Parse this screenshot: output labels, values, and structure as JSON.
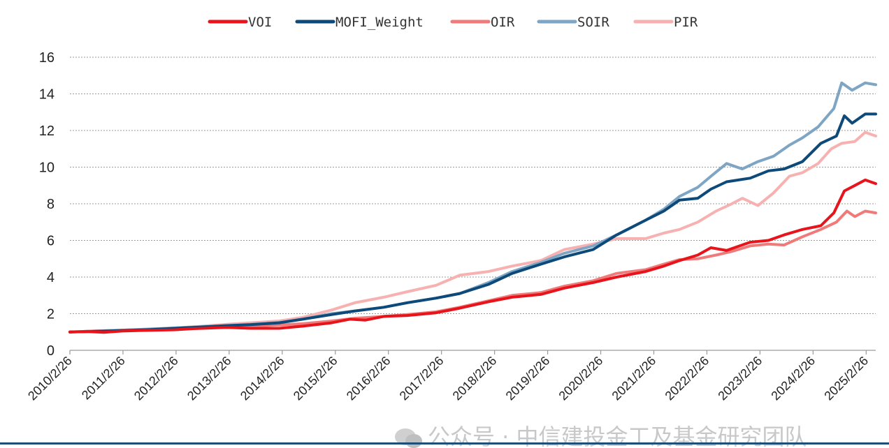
{
  "watermark": {
    "text": "公众号 · 中信建投金工及基金研究团队",
    "icon": "wechat-icon"
  },
  "chart_data": {
    "type": "line",
    "title": "",
    "xlabel": "",
    "ylabel": "",
    "ylim": [
      0,
      16
    ],
    "yticks": [
      "0",
      "2",
      "4",
      "6",
      "8",
      "10",
      "12",
      "14",
      "16"
    ],
    "xlim": [
      2010.15,
      2025.55
    ],
    "xticks": [
      "2010/2/26",
      "2011/2/26",
      "2012/2/26",
      "2013/2/26",
      "2014/2/26",
      "2015/2/26",
      "2016/2/26",
      "2017/2/26",
      "2018/2/26",
      "2019/2/26",
      "2020/2/26",
      "2021/2/26",
      "2022/2/26",
      "2023/2/26",
      "2024/2/26",
      "2025/2/26"
    ],
    "grid": true,
    "legend_position": "top-center",
    "series": [
      {
        "name": "VOI",
        "color": "#e8141c",
        "points": [
          [
            2010.15,
            1.0
          ],
          [
            2010.5,
            1.02
          ],
          [
            2010.8,
            0.98
          ],
          [
            2011.15,
            1.05
          ],
          [
            2011.5,
            1.08
          ],
          [
            2012.15,
            1.12
          ],
          [
            2012.5,
            1.18
          ],
          [
            2013.15,
            1.25
          ],
          [
            2013.6,
            1.2
          ],
          [
            2014.15,
            1.2
          ],
          [
            2014.6,
            1.32
          ],
          [
            2015.15,
            1.5
          ],
          [
            2015.5,
            1.7
          ],
          [
            2015.8,
            1.65
          ],
          [
            2016.15,
            1.85
          ],
          [
            2016.6,
            1.9
          ],
          [
            2017.15,
            2.05
          ],
          [
            2017.6,
            2.3
          ],
          [
            2018.15,
            2.65
          ],
          [
            2018.6,
            2.9
          ],
          [
            2019.15,
            3.05
          ],
          [
            2019.6,
            3.4
          ],
          [
            2020.15,
            3.7
          ],
          [
            2020.6,
            4.0
          ],
          [
            2021.15,
            4.3
          ],
          [
            2021.5,
            4.6
          ],
          [
            2021.8,
            4.9
          ],
          [
            2022.15,
            5.2
          ],
          [
            2022.4,
            5.6
          ],
          [
            2022.7,
            5.45
          ],
          [
            2023.15,
            5.9
          ],
          [
            2023.5,
            6.0
          ],
          [
            2023.8,
            6.3
          ],
          [
            2024.15,
            6.6
          ],
          [
            2024.5,
            6.8
          ],
          [
            2024.75,
            7.5
          ],
          [
            2024.95,
            8.7
          ],
          [
            2025.15,
            9.0
          ],
          [
            2025.35,
            9.3
          ],
          [
            2025.55,
            9.1
          ]
        ]
      },
      {
        "name": "MOFI_Weight",
        "color": "#0d4a7a",
        "points": [
          [
            2010.15,
            1.0
          ],
          [
            2010.6,
            1.03
          ],
          [
            2011.15,
            1.08
          ],
          [
            2011.6,
            1.12
          ],
          [
            2012.15,
            1.2
          ],
          [
            2012.6,
            1.26
          ],
          [
            2013.15,
            1.35
          ],
          [
            2013.6,
            1.4
          ],
          [
            2014.15,
            1.5
          ],
          [
            2014.6,
            1.7
          ],
          [
            2015.15,
            1.95
          ],
          [
            2015.6,
            2.15
          ],
          [
            2016.15,
            2.35
          ],
          [
            2016.6,
            2.6
          ],
          [
            2017.15,
            2.85
          ],
          [
            2017.6,
            3.1
          ],
          [
            2018.15,
            3.6
          ],
          [
            2018.6,
            4.2
          ],
          [
            2019.15,
            4.7
          ],
          [
            2019.6,
            5.1
          ],
          [
            2020.15,
            5.5
          ],
          [
            2020.6,
            6.3
          ],
          [
            2021.15,
            7.1
          ],
          [
            2021.5,
            7.6
          ],
          [
            2021.8,
            8.2
          ],
          [
            2022.15,
            8.3
          ],
          [
            2022.4,
            8.8
          ],
          [
            2022.7,
            9.2
          ],
          [
            2023.15,
            9.4
          ],
          [
            2023.5,
            9.8
          ],
          [
            2023.8,
            9.9
          ],
          [
            2024.15,
            10.3
          ],
          [
            2024.5,
            11.3
          ],
          [
            2024.8,
            11.7
          ],
          [
            2024.95,
            12.8
          ],
          [
            2025.1,
            12.4
          ],
          [
            2025.35,
            12.9
          ],
          [
            2025.55,
            12.9
          ]
        ]
      },
      {
        "name": "OIR",
        "color": "#f07a7a",
        "points": [
          [
            2010.15,
            1.0
          ],
          [
            2010.6,
            1.05
          ],
          [
            2011.15,
            1.08
          ],
          [
            2011.6,
            1.12
          ],
          [
            2012.15,
            1.15
          ],
          [
            2012.6,
            1.2
          ],
          [
            2013.15,
            1.28
          ],
          [
            2013.6,
            1.32
          ],
          [
            2014.15,
            1.38
          ],
          [
            2014.6,
            1.45
          ],
          [
            2015.15,
            1.6
          ],
          [
            2015.6,
            1.75
          ],
          [
            2016.15,
            1.85
          ],
          [
            2016.6,
            1.95
          ],
          [
            2017.15,
            2.1
          ],
          [
            2017.6,
            2.35
          ],
          [
            2018.15,
            2.7
          ],
          [
            2018.6,
            3.0
          ],
          [
            2019.15,
            3.15
          ],
          [
            2019.6,
            3.5
          ],
          [
            2020.15,
            3.8
          ],
          [
            2020.6,
            4.2
          ],
          [
            2021.15,
            4.4
          ],
          [
            2021.5,
            4.7
          ],
          [
            2021.8,
            4.95
          ],
          [
            2022.15,
            5.0
          ],
          [
            2022.5,
            5.2
          ],
          [
            2022.8,
            5.4
          ],
          [
            2023.15,
            5.7
          ],
          [
            2023.5,
            5.8
          ],
          [
            2023.8,
            5.75
          ],
          [
            2024.15,
            6.2
          ],
          [
            2024.5,
            6.6
          ],
          [
            2024.8,
            7.0
          ],
          [
            2025.0,
            7.6
          ],
          [
            2025.15,
            7.3
          ],
          [
            2025.35,
            7.6
          ],
          [
            2025.55,
            7.5
          ]
        ]
      },
      {
        "name": "SOIR",
        "color": "#7fa5c4",
        "points": [
          [
            2010.15,
            1.0
          ],
          [
            2010.6,
            1.05
          ],
          [
            2011.15,
            1.1
          ],
          [
            2011.6,
            1.15
          ],
          [
            2012.15,
            1.22
          ],
          [
            2012.6,
            1.28
          ],
          [
            2013.15,
            1.35
          ],
          [
            2013.6,
            1.42
          ],
          [
            2014.15,
            1.52
          ],
          [
            2014.6,
            1.7
          ],
          [
            2015.15,
            2.0
          ],
          [
            2015.6,
            2.15
          ],
          [
            2016.15,
            2.35
          ],
          [
            2016.6,
            2.6
          ],
          [
            2017.15,
            2.85
          ],
          [
            2017.6,
            3.1
          ],
          [
            2018.15,
            3.7
          ],
          [
            2018.6,
            4.3
          ],
          [
            2019.15,
            4.8
          ],
          [
            2019.6,
            5.3
          ],
          [
            2020.15,
            5.7
          ],
          [
            2020.6,
            6.3
          ],
          [
            2021.15,
            7.1
          ],
          [
            2021.5,
            7.7
          ],
          [
            2021.8,
            8.4
          ],
          [
            2022.15,
            8.9
          ],
          [
            2022.4,
            9.5
          ],
          [
            2022.7,
            10.2
          ],
          [
            2023.0,
            9.9
          ],
          [
            2023.3,
            10.3
          ],
          [
            2023.6,
            10.6
          ],
          [
            2023.9,
            11.2
          ],
          [
            2024.15,
            11.6
          ],
          [
            2024.45,
            12.2
          ],
          [
            2024.75,
            13.2
          ],
          [
            2024.9,
            14.6
          ],
          [
            2025.1,
            14.2
          ],
          [
            2025.35,
            14.6
          ],
          [
            2025.55,
            14.5
          ]
        ]
      },
      {
        "name": "PIR",
        "color": "#f7b1b1",
        "points": [
          [
            2010.15,
            1.0
          ],
          [
            2010.6,
            1.05
          ],
          [
            2011.15,
            1.1
          ],
          [
            2011.6,
            1.15
          ],
          [
            2012.15,
            1.22
          ],
          [
            2012.6,
            1.3
          ],
          [
            2013.15,
            1.42
          ],
          [
            2013.6,
            1.5
          ],
          [
            2014.15,
            1.6
          ],
          [
            2014.6,
            1.8
          ],
          [
            2015.15,
            2.2
          ],
          [
            2015.6,
            2.6
          ],
          [
            2016.15,
            2.9
          ],
          [
            2016.6,
            3.2
          ],
          [
            2017.15,
            3.55
          ],
          [
            2017.6,
            4.1
          ],
          [
            2018.15,
            4.3
          ],
          [
            2018.6,
            4.6
          ],
          [
            2019.15,
            4.9
          ],
          [
            2019.6,
            5.5
          ],
          [
            2020.15,
            5.8
          ],
          [
            2020.6,
            6.1
          ],
          [
            2021.15,
            6.1
          ],
          [
            2021.5,
            6.4
          ],
          [
            2021.8,
            6.6
          ],
          [
            2022.15,
            7.0
          ],
          [
            2022.5,
            7.6
          ],
          [
            2022.8,
            8.0
          ],
          [
            2023.0,
            8.3
          ],
          [
            2023.3,
            7.9
          ],
          [
            2023.6,
            8.6
          ],
          [
            2023.9,
            9.5
          ],
          [
            2024.15,
            9.7
          ],
          [
            2024.45,
            10.2
          ],
          [
            2024.7,
            11.0
          ],
          [
            2024.9,
            11.3
          ],
          [
            2025.15,
            11.4
          ],
          [
            2025.35,
            11.9
          ],
          [
            2025.55,
            11.7
          ]
        ]
      }
    ]
  }
}
